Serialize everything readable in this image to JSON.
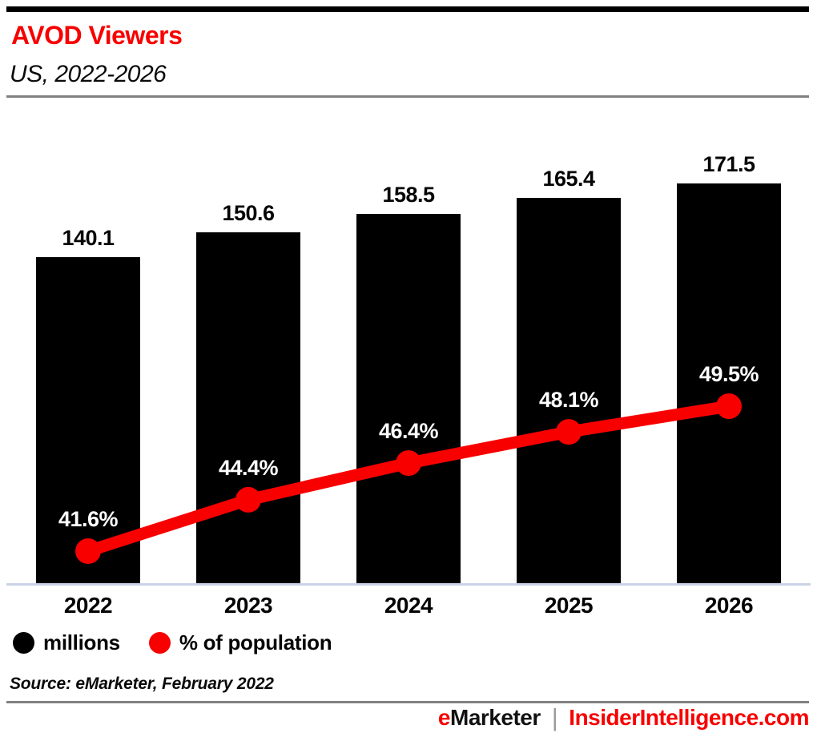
{
  "header": {
    "title": "AVOD Viewers",
    "subtitle": "US, 2022-2026"
  },
  "colors": {
    "accent": "#f80000",
    "bar": "#000000",
    "baseline": "#ccd3e8",
    "rule": "#808080"
  },
  "legend": [
    {
      "label": "millions",
      "color": "#000000"
    },
    {
      "label": "% of population",
      "color": "#f80000"
    }
  ],
  "footer": {
    "source": "Source: eMarketer, February 2022",
    "brand_e": "e",
    "brand_rest": "Marketer",
    "separator": "|",
    "site": "InsiderIntelligence.com"
  },
  "chart_data": {
    "type": "bar",
    "subtype": "combo-bar-line",
    "title": "AVOD Viewers",
    "subtitle": "US, 2022-2026",
    "categories": [
      "2022",
      "2023",
      "2024",
      "2025",
      "2026"
    ],
    "series": [
      {
        "name": "millions",
        "type": "bar",
        "color": "#000000",
        "values": [
          140.1,
          150.6,
          158.5,
          165.4,
          171.5
        ],
        "labels": [
          "140.1",
          "150.6",
          "158.5",
          "165.4",
          "171.5"
        ]
      },
      {
        "name": "% of population",
        "type": "line",
        "color": "#f80000",
        "values": [
          41.6,
          44.4,
          46.4,
          48.1,
          49.5
        ],
        "labels": [
          "41.6%",
          "44.4%",
          "46.4%",
          "48.1%",
          "49.5%"
        ]
      }
    ],
    "xlabel": "",
    "ylabel": "",
    "ylim": [
      0,
      202
    ],
    "y2lim": [
      39.8,
      65.5
    ],
    "grid": false,
    "legend_position": "bottom-left",
    "source": "Source: eMarketer, February 2022"
  }
}
